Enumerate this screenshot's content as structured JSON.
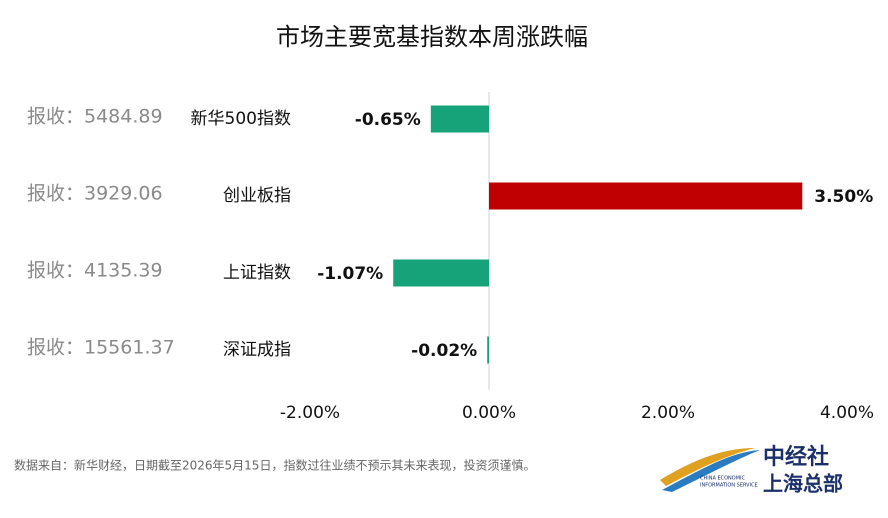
{
  "chart_data": {
    "type": "hbar",
    "title": "市场主要宽基指数本周涨跌幅",
    "categories": [
      "新华500指数",
      "创业板指",
      "上证指数",
      "深证成指"
    ],
    "closing_labels": [
      "报收：5484.89",
      "报收：3929.06",
      "报收：4135.39",
      "报收：15561.37"
    ],
    "values": [
      -0.65,
      3.5,
      -1.07,
      -0.02
    ],
    "value_labels": [
      "-0.65%",
      "3.50%",
      "-1.07%",
      "-0.02%"
    ],
    "colors": [
      "#17a37a",
      "#c00000",
      "#17a37a",
      "#17a37a"
    ],
    "xlim": [
      -2,
      4
    ],
    "xticks": [
      {
        "value": -2,
        "label": "-2.00%"
      },
      {
        "value": 0,
        "label": "0.00%"
      },
      {
        "value": 2,
        "label": "2.00%"
      },
      {
        "value": 4,
        "label": "4.00%"
      }
    ],
    "source": "数据来自：新华财经，日期截至2026年5月15日，指数过往业绩不预示其未来表现，投资须谨慎。"
  },
  "logo": {
    "name": "中经社",
    "branch": "上海总部",
    "english": [
      "CHINA ECONOMIC",
      "INFORMATION SERVICE"
    ]
  }
}
